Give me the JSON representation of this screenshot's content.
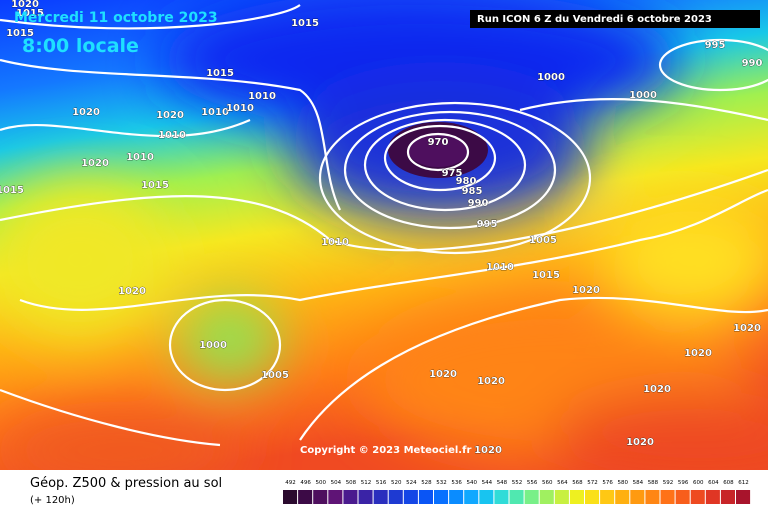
{
  "header": {
    "date": "Mercredi 11 octobre 2023",
    "time": "8:00 locale",
    "run": "Run ICON 6 Z du Vendredi 6 octobre 2023"
  },
  "copyright": "Copyright © 2023 Meteociel.fr",
  "footer": {
    "title": "Géop. Z500 & pression au sol",
    "lead": "(+ 120h)"
  },
  "isobar_labels": [
    "1020",
    "1015",
    "1015",
    "1015",
    "1015",
    "1010",
    "1020",
    "1010",
    "1010",
    "1020",
    "1010",
    "1010",
    "1015",
    "1020",
    "1015",
    "970",
    "975",
    "980",
    "985",
    "990",
    "995",
    "1000",
    "995",
    "990",
    "1000",
    "1010",
    "1005",
    "1010",
    "1015",
    "1020",
    "1020",
    "1020",
    "1000",
    "1020",
    "1005",
    "1020",
    "1020",
    "1020",
    "1020",
    "1020"
  ],
  "legend": {
    "ticks": [
      492,
      496,
      500,
      504,
      508,
      512,
      516,
      520,
      524,
      528,
      532,
      536,
      540,
      544,
      548,
      552,
      556,
      560,
      564,
      568,
      572,
      576,
      580,
      584,
      588,
      592,
      596,
      600,
      604,
      608,
      612
    ],
    "colors": [
      "#2a0a2e",
      "#3c0a46",
      "#4e0f5e",
      "#5f1476",
      "#4a1a8e",
      "#3a23a6",
      "#2a2ebe",
      "#1e3ad2",
      "#1446e6",
      "#0a55f5",
      "#0870ff",
      "#0a8cff",
      "#10a8ff",
      "#18c4f0",
      "#30dcd8",
      "#50e8b0",
      "#78f088",
      "#a0f060",
      "#c8f040",
      "#eef020",
      "#fae018",
      "#ffc814",
      "#ffb010",
      "#ff9a10",
      "#ff8614",
      "#ff7218",
      "#f85e1c",
      "#ee4a20",
      "#e03624",
      "#c82428",
      "#a8142c"
    ]
  }
}
